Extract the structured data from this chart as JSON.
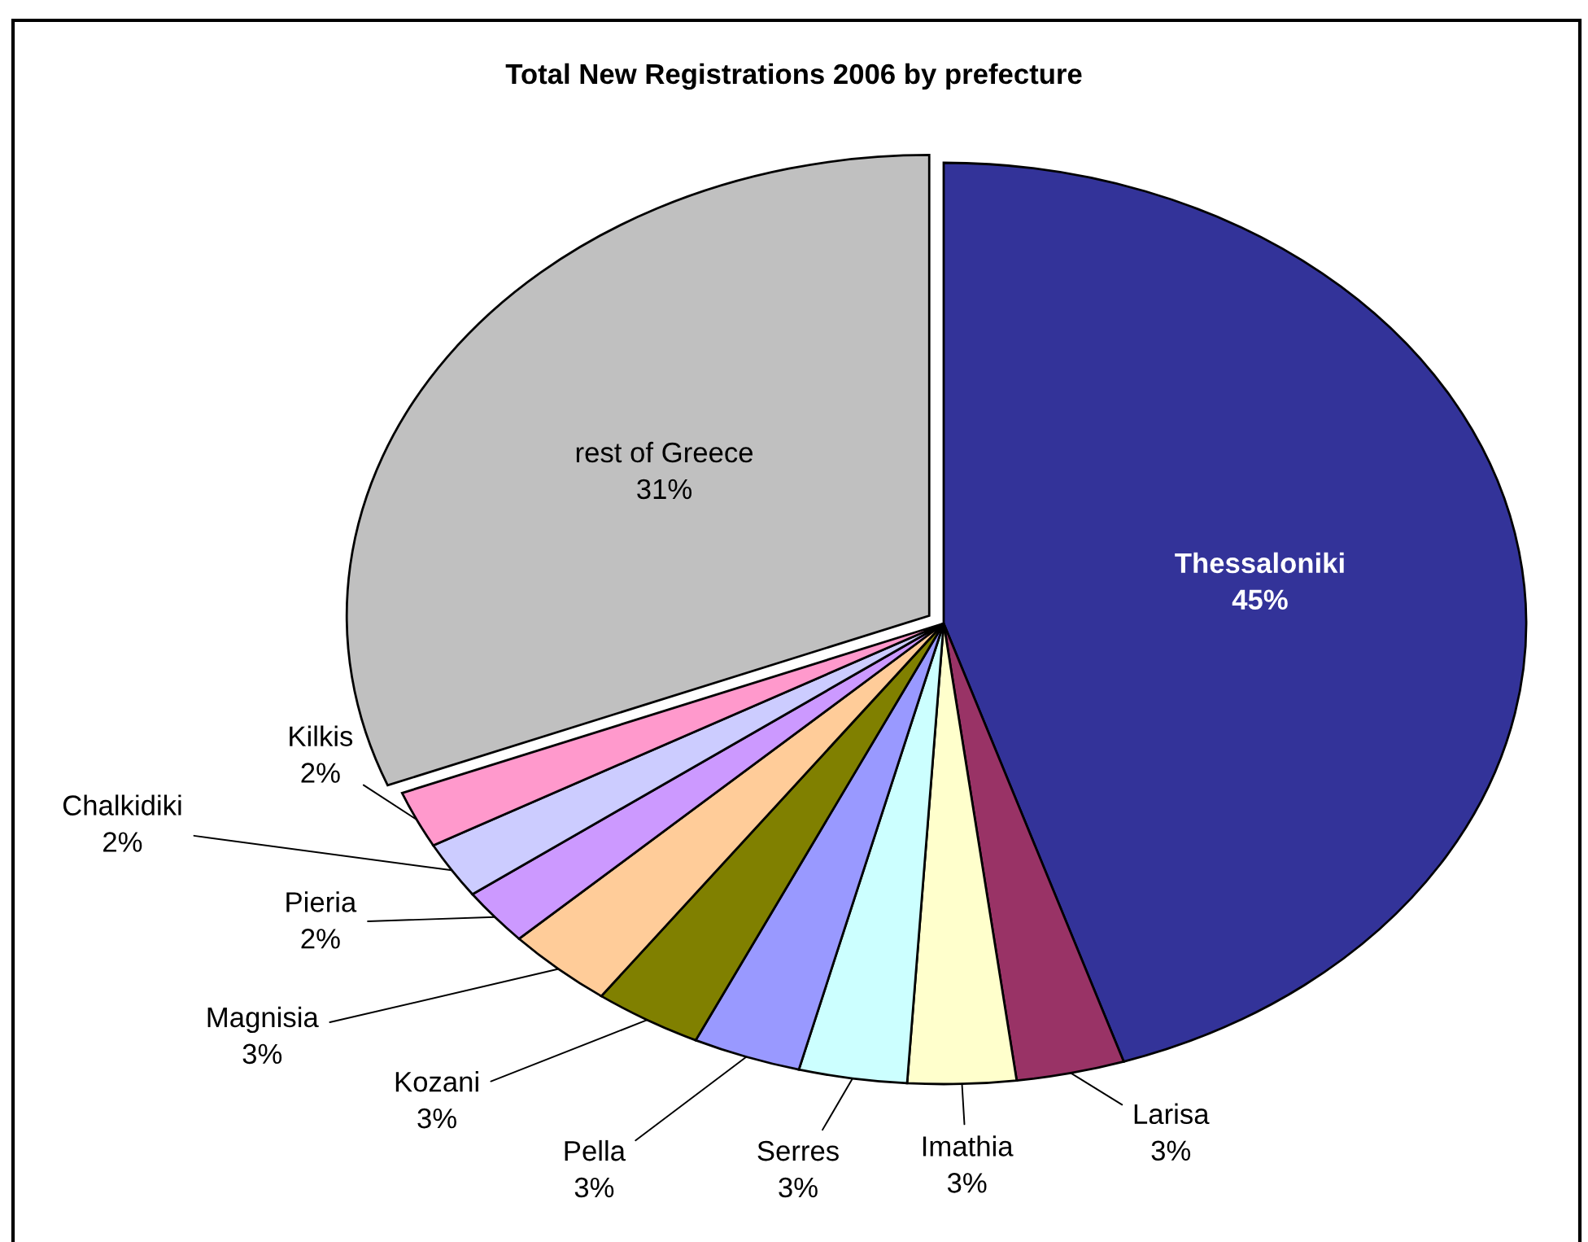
{
  "chart_data": {
    "type": "pie",
    "title": "Total New Registrations 2006 by prefecture",
    "categories": [
      "Thessaloniki",
      "Larisa",
      "Imathia",
      "Serres",
      "Pella",
      "Kozani",
      "Magnisia",
      "Pieria",
      "Chalkidiki",
      "Kilkis",
      "rest of Greece"
    ],
    "values": [
      45,
      3,
      3,
      3,
      3,
      3,
      3,
      2,
      2,
      2,
      31
    ],
    "value_labels": [
      "45%",
      "3%",
      "3%",
      "3%",
      "3%",
      "3%",
      "3%",
      "2%",
      "2%",
      "2%",
      "31%"
    ],
    "colors": [
      "#333399",
      "#993366",
      "#ffffcc",
      "#ccffff",
      "#9999ff",
      "#808000",
      "#ffcc99",
      "#cc99ff",
      "#ccccff",
      "#ff99cc",
      "#c0c0c0"
    ]
  }
}
